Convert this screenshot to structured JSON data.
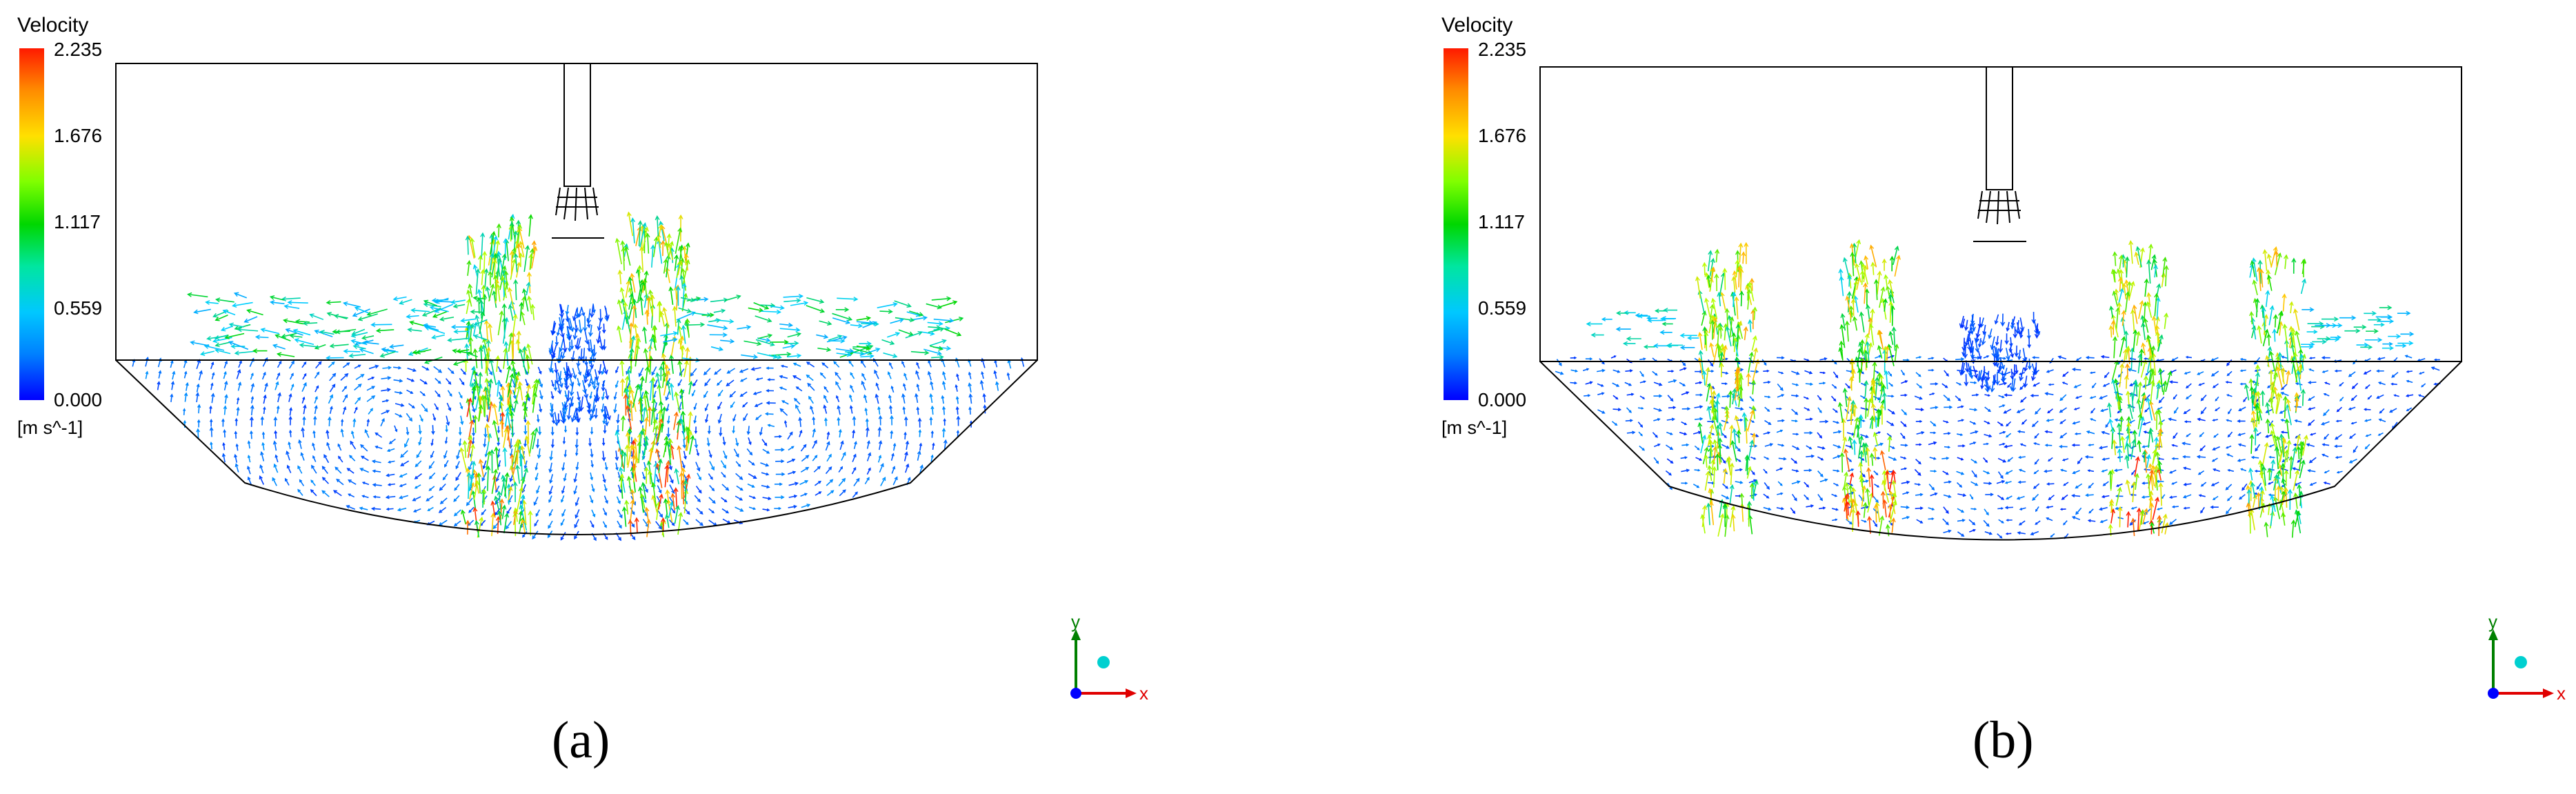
{
  "panels": [
    {
      "caption": "(a)",
      "legend": {
        "title": "Velocity",
        "ticks": [
          "2.235",
          "1.676",
          "1.117",
          "0.559",
          "0.000"
        ],
        "unit": "[m s^-1]"
      },
      "axes": {
        "y": "y",
        "x": "x"
      }
    },
    {
      "caption": "(b)",
      "legend": {
        "title": "Velocity",
        "ticks": [
          "2.235",
          "1.676",
          "1.117",
          "0.559",
          "0.000"
        ],
        "unit": "[m s^-1]"
      },
      "axes": {
        "y": "y",
        "x": "x"
      }
    }
  ],
  "colors": {
    "low": "#0000ff",
    "mid_low": "#00c8ff",
    "mid": "#00d700",
    "mid_high": "#ffe000",
    "high": "#ff1a00"
  }
}
